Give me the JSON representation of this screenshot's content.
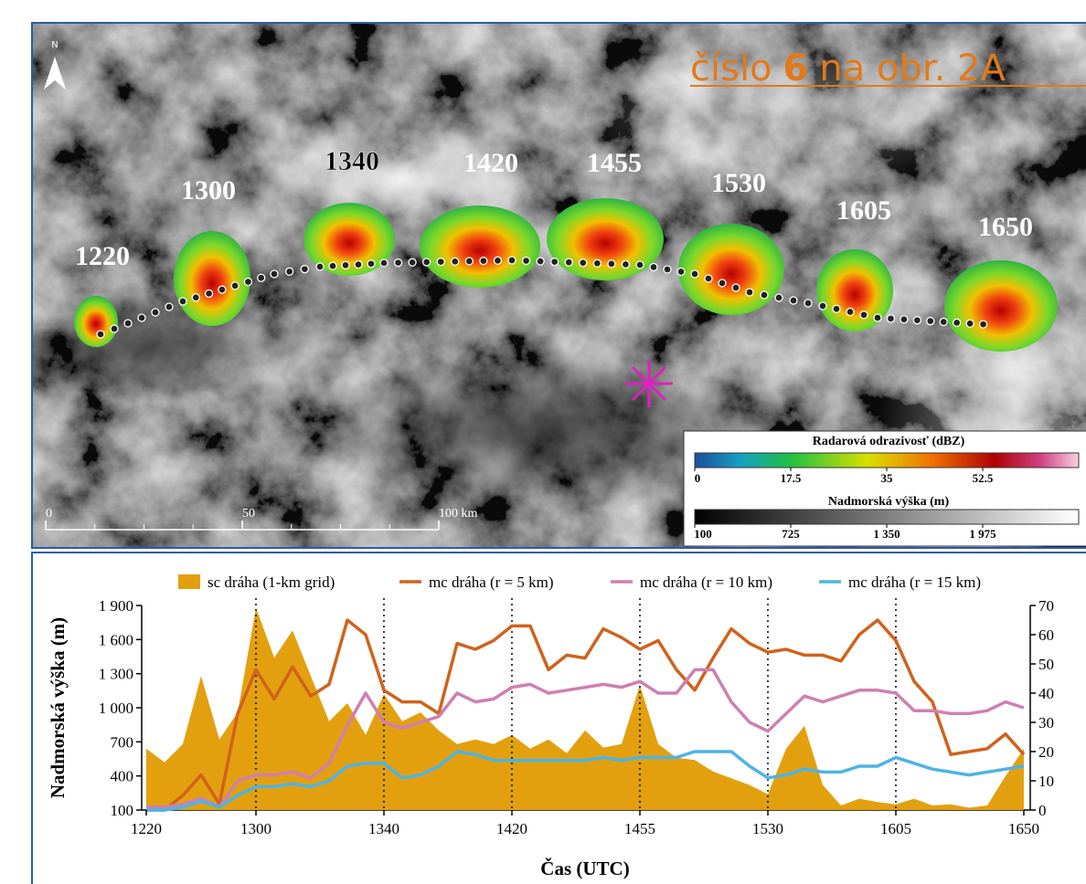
{
  "map": {
    "link": [
      "číslo",
      "6",
      "na obr. 2A"
    ],
    "north": "N",
    "storm_times": [
      "1220",
      "1300",
      "1340",
      "1420",
      "1455",
      "1530",
      "1605",
      "1650"
    ],
    "radar_legend": {
      "title": "Radarová odrazivosť (dBZ)",
      "ticks": [
        0,
        17.5,
        35,
        52.5
      ]
    },
    "elevation_legend": {
      "title": "Nadmorská výška (m)",
      "ticks": [
        100,
        725,
        {
          "value": 1350,
          "label": "1 350"
        },
        {
          "value": 1975,
          "label": "1 975"
        }
      ]
    },
    "scale_ticks": [
      0,
      50,
      {
        "value": 100,
        "label": "100 km"
      }
    ]
  },
  "chart_data": {
    "type": "line",
    "x_label": "Čas (UTC)",
    "y_label": "Nadmorská výška (m)",
    "categories": [
      "1220",
      null,
      null,
      null,
      null,
      null,
      "1300",
      null,
      null,
      null,
      null,
      null,
      null,
      "1340",
      null,
      null,
      null,
      null,
      null,
      null,
      "1420",
      null,
      null,
      null,
      null,
      null,
      null,
      "1455",
      null,
      null,
      null,
      null,
      null,
      null,
      "1530",
      null,
      null,
      null,
      null,
      null,
      null,
      "1605",
      null,
      null,
      null,
      null,
      null,
      null,
      "1650"
    ],
    "ylim": [
      100,
      1900
    ],
    "yticks": [
      100,
      400,
      700,
      {
        "value": 1000,
        "label": "1 000"
      },
      {
        "value": 1300,
        "label": "1 300"
      },
      {
        "value": 1600,
        "label": "1 600"
      },
      {
        "value": 1900,
        "label": "1 900"
      }
    ],
    "y2lim": [
      0,
      70
    ],
    "y2ticks": [
      0,
      10,
      20,
      30,
      40,
      50,
      60,
      70
    ],
    "vertical_guides": true,
    "series": [
      {
        "name": "sc dráha (1-km grid)",
        "type": "area",
        "axis": "y",
        "color": "#e3a00e",
        "values": [
          640,
          520,
          680,
          1280,
          720,
          960,
          1880,
          1440,
          1680,
          1280,
          880,
          1040,
          760,
          1120,
          880,
          960,
          800,
          680,
          720,
          680,
          760,
          640,
          720,
          600,
          800,
          650,
          680,
          1200,
          680,
          560,
          540,
          440,
          380,
          320,
          240,
          640,
          840,
          320,
          140,
          200,
          170,
          150,
          200,
          140,
          150,
          120,
          140,
          400,
          640
        ]
      },
      {
        "name": "mc dráha (r = 5 km)",
        "type": "line",
        "axis": "y2",
        "color": "#d0621c",
        "values": [
          0,
          0,
          5,
          12,
          2,
          33,
          48,
          38,
          49,
          39,
          43,
          65,
          60,
          41,
          37,
          37,
          33,
          57,
          55,
          58,
          63,
          63,
          48,
          53,
          52,
          62,
          59,
          55,
          58,
          48,
          41,
          52,
          62,
          57,
          54,
          55,
          53,
          53,
          51,
          60,
          65,
          58,
          44,
          37,
          19,
          20,
          21,
          26,
          19
        ]
      },
      {
        "name": "mc dráha (r = 10 km)",
        "type": "line",
        "axis": "y2",
        "color": "#cf7fb0",
        "values": [
          1,
          1,
          2,
          4,
          1,
          10,
          12,
          12,
          13,
          11,
          16,
          29,
          40,
          30,
          28,
          30,
          32,
          40,
          37,
          38,
          42,
          43,
          40,
          41,
          42,
          43,
          42,
          44,
          40,
          40,
          48,
          48,
          37,
          30,
          27,
          33,
          39,
          37,
          39,
          41,
          41,
          40,
          34,
          34,
          33,
          33,
          34,
          37,
          35
        ]
      },
      {
        "name": "mc dráha (r = 15 km)",
        "type": "line",
        "axis": "y2",
        "color": "#4db3e6",
        "values": [
          0,
          0,
          1,
          3,
          1,
          5,
          8,
          8,
          9,
          8,
          10,
          15,
          16,
          16,
          11,
          12,
          15,
          20,
          19,
          17,
          17,
          17,
          17,
          17,
          17,
          18,
          17,
          18,
          18,
          18,
          20,
          20,
          20,
          15,
          11,
          12,
          14,
          13,
          13,
          15,
          15,
          18,
          16,
          14,
          13,
          12,
          13,
          14,
          15
        ]
      }
    ]
  }
}
